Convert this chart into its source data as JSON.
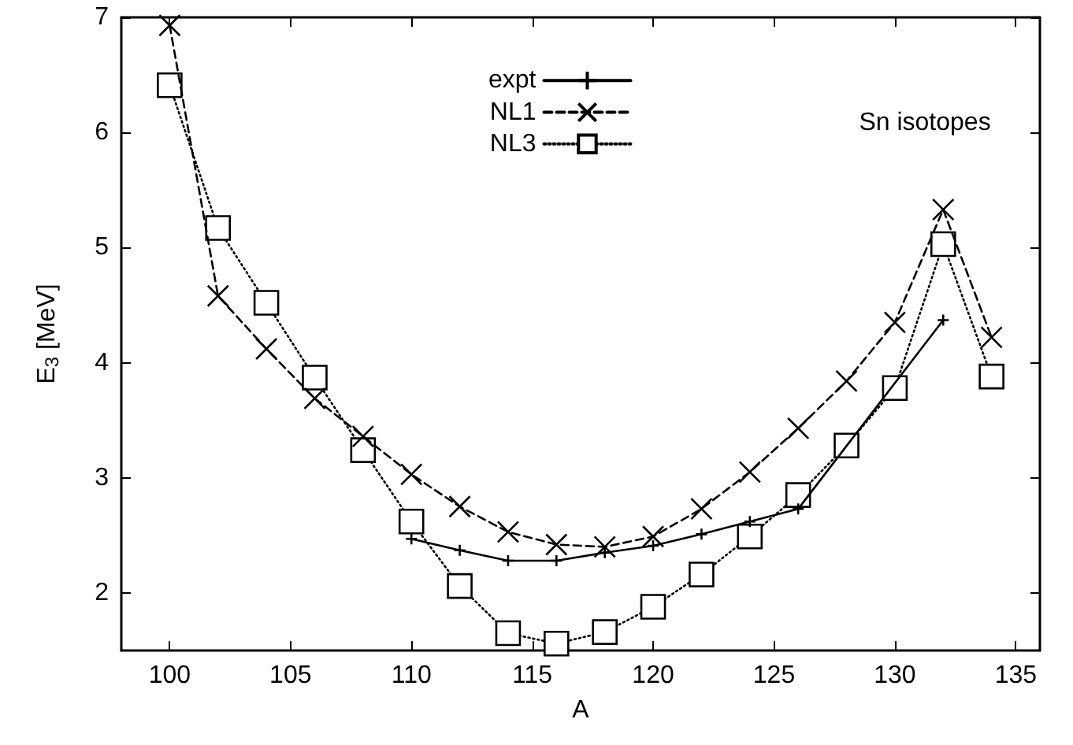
{
  "chart_data": {
    "type": "line",
    "xlabel": "A",
    "ylabel": "E$_{3}$ [MeV]",
    "annotations": [
      "Sn isotopes"
    ],
    "x": [
      100,
      102,
      104,
      106,
      108,
      110,
      112,
      114,
      116,
      118,
      120,
      122,
      124,
      126,
      128,
      130,
      132,
      134
    ],
    "series": [
      {
        "name": "expt",
        "color": "#000000",
        "marker": "plus",
        "line_style": "solid",
        "x": [
          110,
          112,
          114,
          116,
          118,
          120,
          122,
          124,
          126,
          132
        ],
        "values": [
          2.47,
          2.37,
          2.28,
          2.28,
          2.35,
          2.41,
          2.51,
          2.62,
          2.73,
          4.37
        ]
      },
      {
        "name": "NL1",
        "color": "#000000",
        "marker": "cross",
        "line_style": "dashed",
        "values": [
          6.93,
          4.58,
          4.12,
          3.69,
          3.36,
          3.03,
          2.75,
          2.53,
          2.42,
          2.4,
          2.49,
          2.73,
          3.05,
          3.43,
          3.84,
          4.35,
          5.33,
          4.22
        ]
      },
      {
        "name": "NL3",
        "color": "#000000",
        "marker": "square",
        "line_style": "dotted",
        "values": [
          6.41,
          5.17,
          4.52,
          3.87,
          3.24,
          2.62,
          2.06,
          1.65,
          1.56,
          1.66,
          1.88,
          2.16,
          2.49,
          2.85,
          3.28,
          3.78,
          5.03,
          3.88
        ]
      }
    ],
    "xlim": [
      98,
      136
    ],
    "xticks": [
      100,
      105,
      110,
      115,
      120,
      125,
      130,
      135
    ],
    "ylim": [
      1.5,
      7
    ],
    "yticks": [
      2,
      3,
      4,
      5,
      6,
      7
    ],
    "grid": false,
    "legend": "top"
  }
}
